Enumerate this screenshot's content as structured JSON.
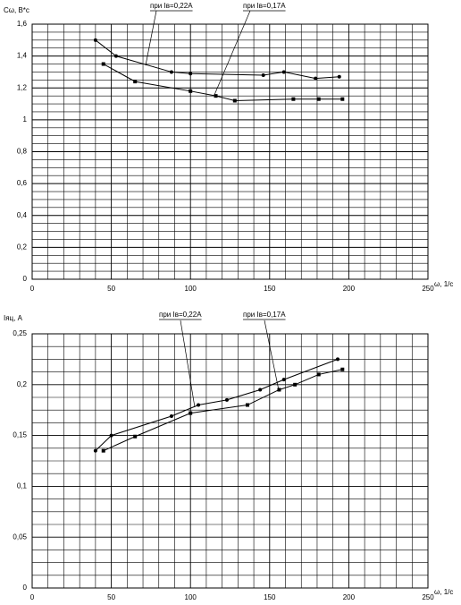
{
  "chart_data": [
    {
      "type": "line",
      "ylabel": "Cω, В*с",
      "xlabel": "ω, 1/c",
      "xlim": [
        0,
        250
      ],
      "xticks": [
        0,
        50,
        100,
        150,
        200,
        250
      ],
      "ylim": [
        0,
        1.6
      ],
      "yticks": [
        0,
        {
          "value": 0.2,
          "label": "0,2"
        },
        {
          "value": 0.4,
          "label": "0,4"
        },
        {
          "value": 0.6,
          "label": "0,6"
        },
        {
          "value": 0.8,
          "label": "0,8"
        },
        1,
        {
          "value": 1.2,
          "label": "1,2"
        },
        {
          "value": 1.4,
          "label": "1,4"
        },
        {
          "value": 1.6,
          "label": "1,6"
        }
      ],
      "grid": true,
      "series": [
        {
          "name": "при Iв=0,22А",
          "color": "#000000",
          "marker": "circle",
          "x": [
            40,
            53,
            88,
            100,
            146,
            159,
            179,
            194
          ],
          "values": [
            1.5,
            1.4,
            1.3,
            1.29,
            1.28,
            1.3,
            1.26,
            1.27
          ]
        },
        {
          "name": "при Iв=0,17А",
          "color": "#000000",
          "marker": "square",
          "x": [
            45,
            65,
            100,
            116,
            128,
            165,
            181,
            196
          ],
          "values": [
            1.35,
            1.24,
            1.18,
            1.15,
            1.12,
            1.13,
            1.13,
            1.13
          ]
        }
      ]
    },
    {
      "type": "line",
      "ylabel": "Iяц, А",
      "xlabel": "ω, 1/c",
      "xlim": [
        0,
        250
      ],
      "xticks": [
        0,
        50,
        100,
        150,
        200,
        250
      ],
      "ylim": [
        0,
        0.25
      ],
      "yticks": [
        0,
        {
          "value": 0.05,
          "label": "0,05"
        },
        {
          "value": 0.1,
          "label": "0,1"
        },
        {
          "value": 0.15,
          "label": "0,15"
        },
        {
          "value": 0.2,
          "label": "0,2"
        },
        {
          "value": 0.25,
          "label": "0,25"
        }
      ],
      "grid": true,
      "series": [
        {
          "name": "при Iв=0,22А",
          "color": "#000000",
          "marker": "circle",
          "x": [
            40,
            50,
            88,
            105,
            123,
            144,
            159,
            193
          ],
          "values": [
            0.135,
            0.15,
            0.169,
            0.18,
            0.185,
            0.195,
            0.205,
            0.225
          ]
        },
        {
          "name": "при Iв=0,17А",
          "color": "#000000",
          "marker": "square",
          "x": [
            45,
            65,
            100,
            136,
            156,
            166,
            181,
            196
          ],
          "values": [
            0.135,
            0.149,
            0.172,
            0.18,
            0.195,
            0.2,
            0.21,
            0.215
          ]
        }
      ]
    }
  ]
}
